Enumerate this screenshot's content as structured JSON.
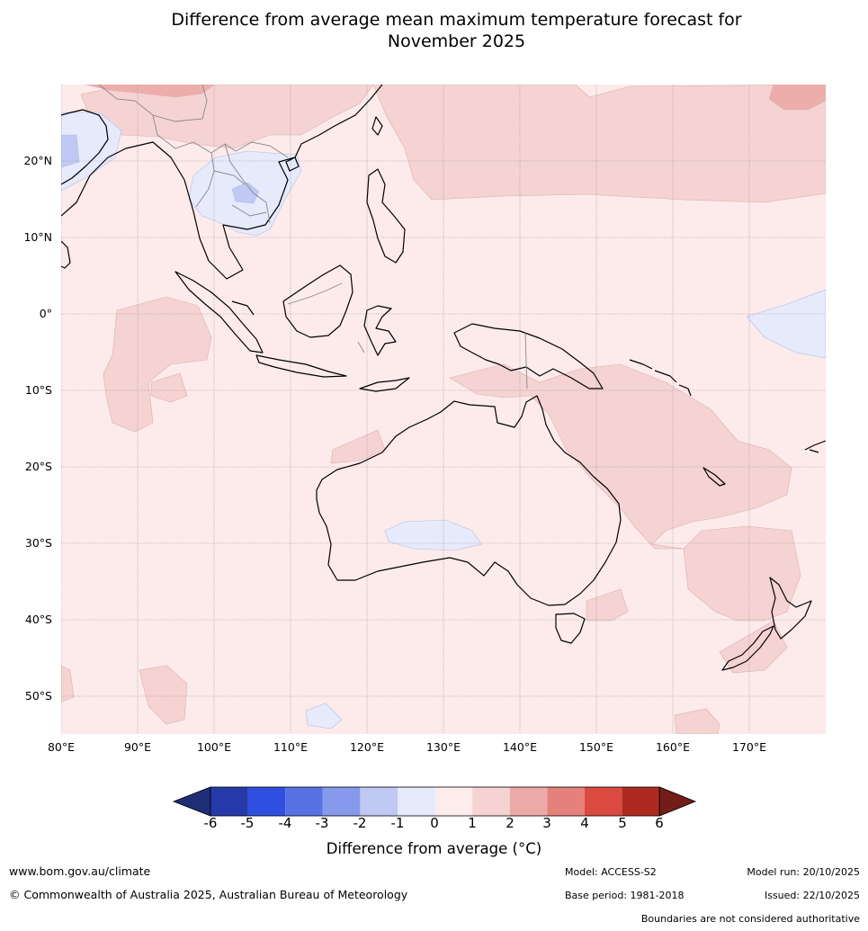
{
  "title_line1": "Difference from average mean maximum temperature forecast for",
  "title_line2": "November 2025",
  "lat_labels": [
    "20°N",
    "10°N",
    "0°",
    "10°S",
    "20°S",
    "30°S",
    "40°S",
    "50°S"
  ],
  "lon_labels": [
    "80°E",
    "90°E",
    "100°E",
    "110°E",
    "120°E",
    "130°E",
    "140°E",
    "150°E",
    "160°E",
    "170°E"
  ],
  "colorbar": {
    "ticks": [
      "-6",
      "-5",
      "-4",
      "-3",
      "-2",
      "-1",
      "0",
      "1",
      "2",
      "3",
      "4",
      "5",
      "6"
    ],
    "colors": [
      "#2539a8",
      "#2f4fe0",
      "#5872e3",
      "#8799ec",
      "#c0c8f4",
      "#e6eafb",
      "#fceceb",
      "#f5d3d2",
      "#ecaaa7",
      "#e5817c",
      "#db4a40",
      "#ad2a20"
    ],
    "under_color": "#1e2f78",
    "over_color": "#741d18",
    "label": "Difference from average (°C)"
  },
  "map_colors": {
    "base": "#fcebea",
    "warm1": "#f5d3d2",
    "warm2": "#edaeab",
    "cool1": "#e6eafb",
    "cool2": "#c0c8f4",
    "cool3": "#a7b3ef"
  },
  "footer": {
    "website": "www.bom.gov.au/climate",
    "copyright": "© Commonwealth of Australia 2025, Australian Bureau of Meteorology",
    "model": "Model: ACCESS-S2",
    "base_period": "Base period: 1981-2018",
    "model_run": "Model run: 20/10/2025",
    "issued": "Issued: 22/10/2025",
    "disclaimer": "Boundaries are not considered authoritative"
  }
}
